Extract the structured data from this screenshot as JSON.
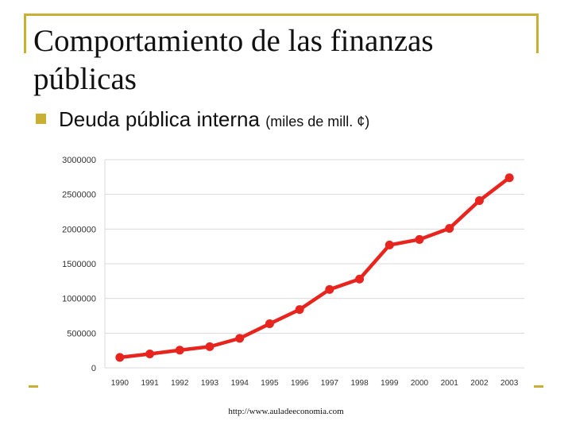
{
  "slide": {
    "title": "Comportamiento de las finanzas públicas",
    "bullet_main": "Deuda pública interna",
    "bullet_unit": "(miles de mill. ¢)",
    "footer_url": "http://www.auladeeconomia.com",
    "accent_color": "#c9b033"
  },
  "chart_data": {
    "type": "line",
    "title": "",
    "xlabel": "",
    "ylabel": "",
    "categories": [
      "1990",
      "1991",
      "1992",
      "1993",
      "1994",
      "1995",
      "1996",
      "1997",
      "1998",
      "1999",
      "2000",
      "2001",
      "2002",
      "2003"
    ],
    "series": [
      {
        "name": "Deuda pública interna",
        "color": "#e8241f",
        "values": [
          150000,
          200000,
          255000,
          305000,
          425000,
          635000,
          840000,
          1130000,
          1280000,
          1770000,
          1850000,
          2010000,
          2410000,
          2740000
        ]
      }
    ],
    "ylim": [
      0,
      3000000
    ],
    "yticks": [
      "0",
      "500000",
      "1000000",
      "1500000",
      "2000000",
      "2500000",
      "3000000"
    ],
    "grid": true,
    "legend": "none"
  }
}
